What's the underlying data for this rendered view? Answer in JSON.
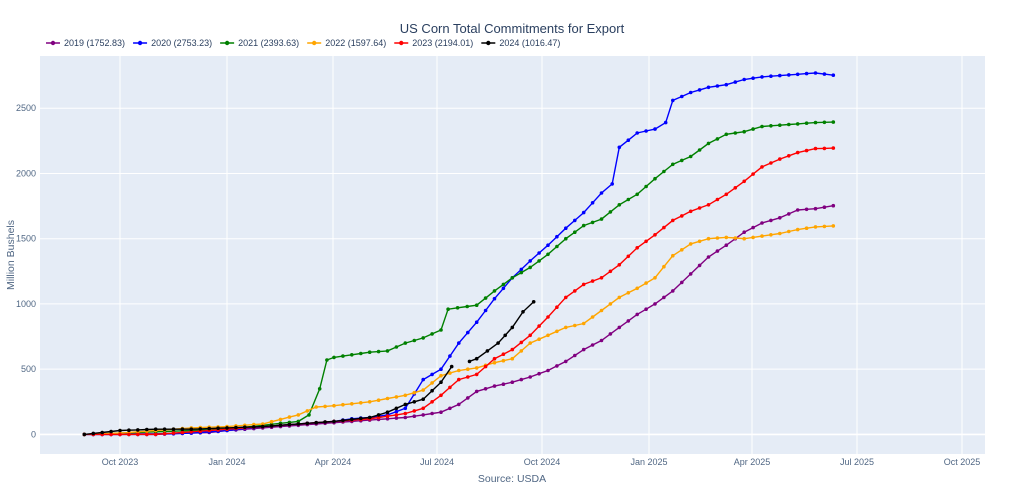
{
  "chart_data": {
    "type": "line",
    "title": "US Corn Total Commitments for Export",
    "xlabel": "Source: USDA",
    "ylabel": "Million Bushels",
    "ylim": [
      -150,
      2900
    ],
    "y_ticks": [
      0,
      500,
      1000,
      1500,
      2000,
      2500
    ],
    "x_tick_labels": [
      "Oct 2023",
      "Jan 2024",
      "Apr 2024",
      "Jul 2024",
      "Oct 2024",
      "Jan 2025",
      "Apr 2025",
      "Jul 2025",
      "Oct 2025"
    ],
    "legend_placement": "top-left",
    "grid": true,
    "background": "#e5ecf6",
    "series": [
      {
        "name": "2019 (1752.83)",
        "color": "#800080",
        "points": [
          [
            0,
            0
          ],
          [
            1,
            0
          ],
          [
            1.5,
            5
          ],
          [
            2,
            5
          ],
          [
            3,
            10
          ],
          [
            3.5,
            15
          ],
          [
            4,
            30
          ],
          [
            5,
            50
          ],
          [
            6,
            70
          ],
          [
            7,
            90
          ],
          [
            8,
            110
          ],
          [
            9,
            130
          ],
          [
            9.5,
            150
          ],
          [
            10,
            170
          ],
          [
            10.5,
            230
          ],
          [
            11,
            330
          ],
          [
            11.5,
            370
          ],
          [
            12,
            400
          ],
          [
            12.5,
            440
          ],
          [
            13,
            490
          ],
          [
            13.5,
            560
          ],
          [
            14,
            650
          ],
          [
            14.5,
            720
          ],
          [
            15,
            820
          ],
          [
            15.5,
            920
          ],
          [
            16,
            1000
          ],
          [
            16.5,
            1100
          ],
          [
            17,
            1230
          ],
          [
            17.5,
            1360
          ],
          [
            18,
            1450
          ],
          [
            18.5,
            1550
          ],
          [
            19,
            1620
          ],
          [
            19.5,
            1660
          ],
          [
            20,
            1720
          ],
          [
            20.5,
            1730
          ],
          [
            21,
            1752.83
          ]
        ]
      },
      {
        "name": "2020 (2753.23)",
        "color": "#0000ff",
        "points": [
          [
            0,
            0
          ],
          [
            1,
            0
          ],
          [
            2,
            0
          ],
          [
            3,
            10
          ],
          [
            4,
            30
          ],
          [
            5,
            60
          ],
          [
            6,
            80
          ],
          [
            7,
            100
          ],
          [
            7.5,
            120
          ],
          [
            8,
            130
          ],
          [
            8.5,
            150
          ],
          [
            9,
            200
          ],
          [
            9.5,
            420
          ],
          [
            10,
            500
          ],
          [
            10.5,
            700
          ],
          [
            11,
            860
          ],
          [
            11.5,
            1040
          ],
          [
            12,
            1200
          ],
          [
            12.5,
            1330
          ],
          [
            13,
            1450
          ],
          [
            13.5,
            1580
          ],
          [
            14,
            1700
          ],
          [
            14.5,
            1850
          ],
          [
            14.8,
            1920
          ],
          [
            15,
            2200
          ],
          [
            15.5,
            2310
          ],
          [
            16,
            2340
          ],
          [
            16.3,
            2390
          ],
          [
            16.5,
            2560
          ],
          [
            17,
            2620
          ],
          [
            17.5,
            2660
          ],
          [
            18,
            2680
          ],
          [
            18.5,
            2720
          ],
          [
            19,
            2740
          ],
          [
            19.5,
            2750
          ],
          [
            20,
            2760
          ],
          [
            20.5,
            2770
          ],
          [
            21,
            2753.23
          ]
        ]
      },
      {
        "name": "2021 (2393.63)",
        "color": "#008000",
        "points": [
          [
            0,
            0
          ],
          [
            1,
            10
          ],
          [
            2,
            20
          ],
          [
            3,
            30
          ],
          [
            4,
            40
          ],
          [
            5,
            70
          ],
          [
            6,
            100
          ],
          [
            6.3,
            150
          ],
          [
            6.6,
            350
          ],
          [
            6.8,
            570
          ],
          [
            7,
            590
          ],
          [
            7.5,
            610
          ],
          [
            8,
            630
          ],
          [
            8.5,
            640
          ],
          [
            9,
            700
          ],
          [
            9.5,
            740
          ],
          [
            10,
            800
          ],
          [
            10.2,
            960
          ],
          [
            11,
            990
          ],
          [
            11.5,
            1100
          ],
          [
            12,
            1200
          ],
          [
            12.5,
            1280
          ],
          [
            13,
            1380
          ],
          [
            13.5,
            1500
          ],
          [
            14,
            1600
          ],
          [
            14.5,
            1650
          ],
          [
            15,
            1760
          ],
          [
            15.5,
            1840
          ],
          [
            16,
            1960
          ],
          [
            16.5,
            2070
          ],
          [
            17,
            2130
          ],
          [
            17.5,
            2230
          ],
          [
            18,
            2300
          ],
          [
            18.5,
            2320
          ],
          [
            19,
            2360
          ],
          [
            19.5,
            2370
          ],
          [
            20,
            2380
          ],
          [
            20.5,
            2390
          ],
          [
            21,
            2393.63
          ]
        ]
      },
      {
        "name": "2022 (1597.64)",
        "color": "#ffa500",
        "points": [
          [
            0,
            0
          ],
          [
            1,
            10
          ],
          [
            2,
            30
          ],
          [
            3,
            50
          ],
          [
            4,
            60
          ],
          [
            5,
            80
          ],
          [
            6,
            150
          ],
          [
            6.5,
            210
          ],
          [
            7,
            220
          ],
          [
            8,
            250
          ],
          [
            9,
            300
          ],
          [
            9.5,
            340
          ],
          [
            10,
            450
          ],
          [
            10.5,
            490
          ],
          [
            11,
            510
          ],
          [
            11.5,
            550
          ],
          [
            12,
            580
          ],
          [
            12.5,
            700
          ],
          [
            13,
            760
          ],
          [
            13.5,
            820
          ],
          [
            14,
            850
          ],
          [
            14.5,
            950
          ],
          [
            15,
            1050
          ],
          [
            15.5,
            1120
          ],
          [
            16,
            1200
          ],
          [
            16.5,
            1370
          ],
          [
            17,
            1460
          ],
          [
            17.5,
            1500
          ],
          [
            18,
            1510
          ],
          [
            18.5,
            1500
          ],
          [
            19,
            1520
          ],
          [
            19.5,
            1540
          ],
          [
            20,
            1570
          ],
          [
            20.5,
            1590
          ],
          [
            21,
            1597.64
          ]
        ]
      },
      {
        "name": "2023 (2194.01)",
        "color": "#ff0000",
        "points": [
          [
            0,
            0
          ],
          [
            1,
            0
          ],
          [
            2,
            0
          ],
          [
            3,
            20
          ],
          [
            4,
            40
          ],
          [
            5,
            60
          ],
          [
            6,
            80
          ],
          [
            7,
            100
          ],
          [
            8,
            120
          ],
          [
            9,
            160
          ],
          [
            9.5,
            200
          ],
          [
            10,
            300
          ],
          [
            10.5,
            420
          ],
          [
            11,
            460
          ],
          [
            11.5,
            580
          ],
          [
            12,
            650
          ],
          [
            12.5,
            760
          ],
          [
            13,
            900
          ],
          [
            13.5,
            1050
          ],
          [
            14,
            1150
          ],
          [
            14.5,
            1200
          ],
          [
            15,
            1300
          ],
          [
            15.5,
            1430
          ],
          [
            16,
            1530
          ],
          [
            16.5,
            1640
          ],
          [
            17,
            1710
          ],
          [
            17.5,
            1760
          ],
          [
            18,
            1840
          ],
          [
            18.5,
            1940
          ],
          [
            19,
            2050
          ],
          [
            19.5,
            2110
          ],
          [
            20,
            2160
          ],
          [
            20.5,
            2190
          ],
          [
            21,
            2194.01
          ]
        ]
      },
      {
        "name": "2024 (1016.47)",
        "color": "#000000",
        "segments": [
          [
            [
              0,
              0
            ],
            [
              1,
              30
            ],
            [
              2,
              40
            ],
            [
              3,
              40
            ],
            [
              4,
              50
            ],
            [
              5,
              60
            ],
            [
              6,
              80
            ],
            [
              7,
              100
            ],
            [
              8,
              130
            ],
            [
              8.5,
              170
            ],
            [
              9,
              230
            ],
            [
              9.5,
              270
            ],
            [
              10,
              400
            ],
            [
              10.3,
              520
            ]
          ],
          [
            [
              10.8,
              560
            ],
            [
              11,
              580
            ],
            [
              11.3,
              640
            ],
            [
              11.6,
              700
            ],
            [
              12,
              820
            ],
            [
              12.3,
              940
            ],
            [
              12.6,
              1016.47
            ]
          ]
        ]
      }
    ]
  }
}
